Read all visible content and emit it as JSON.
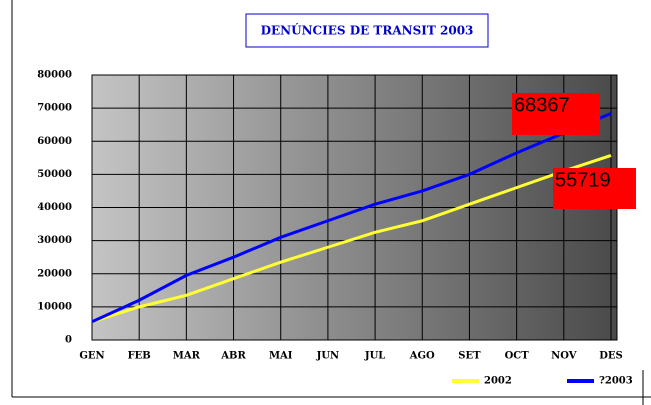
{
  "chart_data": {
    "type": "line",
    "title": "DENÚNCIES DE TRANSIT 2003",
    "categories": [
      "GEN",
      "FEB",
      "MAR",
      "ABR",
      "MAI",
      "JUN",
      "JUL",
      "AGO",
      "SET",
      "OCT",
      "NOV",
      "DES"
    ],
    "series": [
      {
        "name": "2002",
        "color": "#ffff33",
        "values": [
          5500,
          10000,
          13500,
          18500,
          23500,
          28000,
          32500,
          36000,
          41000,
          46000,
          51000,
          55719
        ]
      },
      {
        "name": "?2003",
        "color": "#0000ff",
        "values": [
          5500,
          12000,
          19500,
          25000,
          31000,
          36000,
          41000,
          45000,
          50000,
          56500,
          62500,
          68367
        ]
      }
    ],
    "ylim": [
      0,
      80000
    ],
    "yticks": [
      0,
      10000,
      20000,
      30000,
      40000,
      50000,
      60000,
      70000,
      80000
    ],
    "grid": true,
    "legend": "bottom-right"
  }
}
